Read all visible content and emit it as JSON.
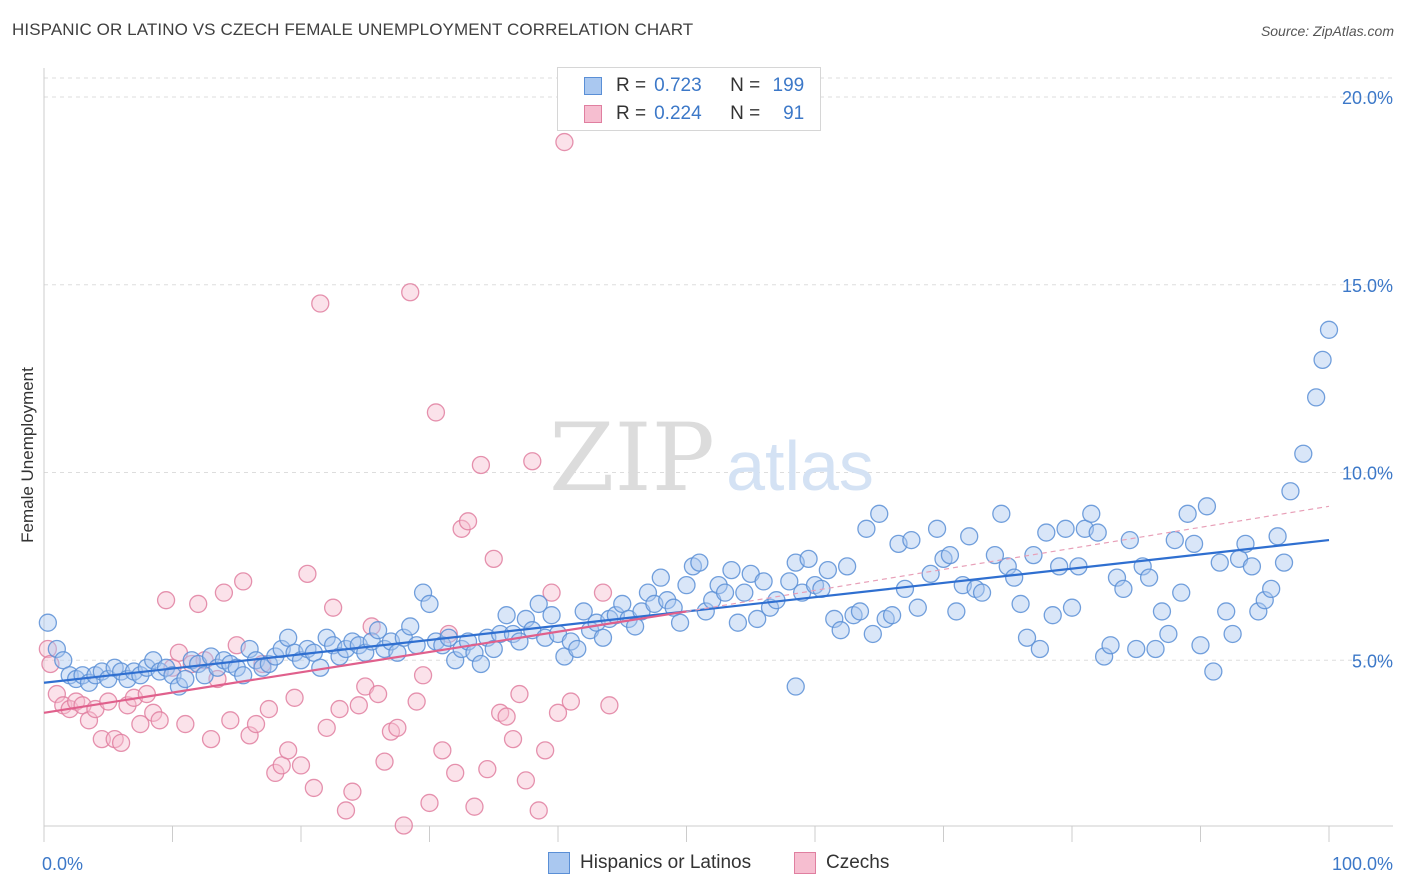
{
  "title": "HISPANIC OR LATINO VS CZECH FEMALE UNEMPLOYMENT CORRELATION CHART",
  "source": "Source: ZipAtlas.com",
  "watermark": {
    "zip": "ZIP",
    "atlas": "atlas"
  },
  "legend": {
    "r_label": "R =",
    "n_label": "N =",
    "rows": [
      {
        "name": "Hispanics or Latinos",
        "r": "0.723",
        "n": "199",
        "color": "#5a8fd6",
        "fill": "#aac8f0"
      },
      {
        "name": "Czechs",
        "r": "0.224",
        "n": "91",
        "color": "#e07fa0",
        "fill": "#f6bed0"
      }
    ]
  },
  "chart_data": {
    "type": "scatter",
    "title": "HISPANIC OR LATINO VS CZECH FEMALE UNEMPLOYMENT CORRELATION CHART",
    "xlabel": "",
    "ylabel": "Female Unemployment",
    "xlim": [
      0,
      100
    ],
    "ylim": [
      0,
      20.5
    ],
    "x_tick_labels": [
      "0.0%",
      "100.0%"
    ],
    "y_ticks": [
      5,
      10,
      15,
      20
    ],
    "y_tick_labels": [
      "5.0%",
      "10.0%",
      "15.0%",
      "20.0%"
    ],
    "grid": true,
    "series": [
      {
        "name": "Hispanics or Latinos",
        "color": "#5a8fd6",
        "trend": {
          "x0": 0,
          "y0": 4.4,
          "x1": 100,
          "y1": 8.2,
          "style": "solid"
        },
        "points": [
          [
            0.3,
            6.0
          ],
          [
            1,
            5.3
          ],
          [
            1.5,
            5.0
          ],
          [
            2,
            4.6
          ],
          [
            2.5,
            4.5
          ],
          [
            3,
            4.6
          ],
          [
            3.5,
            4.4
          ],
          [
            4,
            4.6
          ],
          [
            4.5,
            4.7
          ],
          [
            5,
            4.5
          ],
          [
            5.5,
            4.8
          ],
          [
            6,
            4.7
          ],
          [
            6.5,
            4.5
          ],
          [
            7,
            4.7
          ],
          [
            7.5,
            4.6
          ],
          [
            8,
            4.8
          ],
          [
            8.5,
            5.0
          ],
          [
            9,
            4.7
          ],
          [
            9.5,
            4.8
          ],
          [
            10,
            4.6
          ],
          [
            10.5,
            4.3
          ],
          [
            11,
            4.5
          ],
          [
            11.5,
            5.0
          ],
          [
            12,
            4.9
          ],
          [
            12.5,
            4.6
          ],
          [
            13,
            5.1
          ],
          [
            13.5,
            4.8
          ],
          [
            14,
            5.0
          ],
          [
            14.5,
            4.9
          ],
          [
            15,
            4.8
          ],
          [
            15.5,
            4.6
          ],
          [
            16,
            5.3
          ],
          [
            16.5,
            5.0
          ],
          [
            17,
            4.8
          ],
          [
            17.5,
            4.9
          ],
          [
            18,
            5.1
          ],
          [
            18.5,
            5.3
          ],
          [
            19,
            5.6
          ],
          [
            19.5,
            5.2
          ],
          [
            20,
            5.0
          ],
          [
            20.5,
            5.3
          ],
          [
            21,
            5.2
          ],
          [
            21.5,
            4.8
          ],
          [
            22,
            5.6
          ],
          [
            22.5,
            5.4
          ],
          [
            23,
            5.1
          ],
          [
            23.5,
            5.3
          ],
          [
            24,
            5.5
          ],
          [
            24.5,
            5.4
          ],
          [
            25,
            5.2
          ],
          [
            25.5,
            5.5
          ],
          [
            26,
            5.8
          ],
          [
            26.5,
            5.3
          ],
          [
            27,
            5.5
          ],
          [
            27.5,
            5.2
          ],
          [
            28,
            5.6
          ],
          [
            28.5,
            5.9
          ],
          [
            29,
            5.4
          ],
          [
            29.5,
            6.8
          ],
          [
            30,
            6.5
          ],
          [
            30.5,
            5.5
          ],
          [
            31,
            5.4
          ],
          [
            31.5,
            5.6
          ],
          [
            32,
            5.0
          ],
          [
            32.5,
            5.3
          ],
          [
            33,
            5.5
          ],
          [
            33.5,
            5.2
          ],
          [
            34,
            4.9
          ],
          [
            34.5,
            5.6
          ],
          [
            35,
            5.3
          ],
          [
            35.5,
            5.7
          ],
          [
            36,
            6.2
          ],
          [
            36.5,
            5.7
          ],
          [
            37,
            5.5
          ],
          [
            37.5,
            6.1
          ],
          [
            38,
            5.8
          ],
          [
            38.5,
            6.5
          ],
          [
            39,
            5.6
          ],
          [
            39.5,
            6.2
          ],
          [
            40,
            5.7
          ],
          [
            40.5,
            5.1
          ],
          [
            41,
            5.5
          ],
          [
            41.5,
            5.3
          ],
          [
            42,
            6.3
          ],
          [
            42.5,
            5.8
          ],
          [
            43,
            6.0
          ],
          [
            43.5,
            5.6
          ],
          [
            44,
            6.1
          ],
          [
            44.5,
            6.2
          ],
          [
            45,
            6.5
          ],
          [
            45.5,
            6.1
          ],
          [
            46,
            5.9
          ],
          [
            46.5,
            6.3
          ],
          [
            47,
            6.8
          ],
          [
            47.5,
            6.5
          ],
          [
            48,
            7.2
          ],
          [
            48.5,
            6.6
          ],
          [
            49,
            6.4
          ],
          [
            49.5,
            6.0
          ],
          [
            50,
            7.0
          ],
          [
            50.5,
            7.5
          ],
          [
            51,
            7.6
          ],
          [
            51.5,
            6.3
          ],
          [
            52,
            6.6
          ],
          [
            52.5,
            7.0
          ],
          [
            53,
            6.8
          ],
          [
            53.5,
            7.4
          ],
          [
            54,
            6.0
          ],
          [
            54.5,
            6.8
          ],
          [
            55,
            7.3
          ],
          [
            55.5,
            6.1
          ],
          [
            56,
            7.1
          ],
          [
            56.5,
            6.4
          ],
          [
            57,
            6.6
          ],
          [
            58,
            7.1
          ],
          [
            58.5,
            7.6
          ],
          [
            59,
            6.8
          ],
          [
            59.5,
            7.7
          ],
          [
            60,
            7.0
          ],
          [
            60.5,
            6.9
          ],
          [
            61,
            7.4
          ],
          [
            61.5,
            6.1
          ],
          [
            62,
            5.8
          ],
          [
            62.5,
            7.5
          ],
          [
            63,
            6.2
          ],
          [
            63.5,
            6.3
          ],
          [
            64,
            8.5
          ],
          [
            64.5,
            5.7
          ],
          [
            65,
            8.9
          ],
          [
            65.5,
            6.1
          ],
          [
            66,
            6.2
          ],
          [
            66.5,
            8.1
          ],
          [
            67,
            6.9
          ],
          [
            67.5,
            8.2
          ],
          [
            68,
            6.4
          ],
          [
            69,
            7.3
          ],
          [
            69.5,
            8.5
          ],
          [
            70,
            7.7
          ],
          [
            70.5,
            7.8
          ],
          [
            71,
            6.3
          ],
          [
            71.5,
            7.0
          ],
          [
            72,
            8.3
          ],
          [
            72.5,
            6.9
          ],
          [
            73,
            6.8
          ],
          [
            74,
            7.8
          ],
          [
            74.5,
            8.9
          ],
          [
            75,
            7.5
          ],
          [
            75.5,
            7.2
          ],
          [
            76,
            6.5
          ],
          [
            76.5,
            5.6
          ],
          [
            77,
            7.8
          ],
          [
            77.5,
            5.3
          ],
          [
            78,
            8.4
          ],
          [
            78.5,
            6.2
          ],
          [
            79,
            7.5
          ],
          [
            79.5,
            8.5
          ],
          [
            80,
            6.4
          ],
          [
            80.5,
            7.5
          ],
          [
            81,
            8.5
          ],
          [
            81.5,
            8.9
          ],
          [
            82,
            8.4
          ],
          [
            82.5,
            5.1
          ],
          [
            83,
            5.4
          ],
          [
            83.5,
            7.2
          ],
          [
            84,
            6.9
          ],
          [
            84.5,
            8.2
          ],
          [
            85,
            5.3
          ],
          [
            85.5,
            7.5
          ],
          [
            86,
            7.2
          ],
          [
            86.5,
            5.3
          ],
          [
            87,
            6.3
          ],
          [
            87.5,
            5.7
          ],
          [
            88,
            8.2
          ],
          [
            88.5,
            6.8
          ],
          [
            89,
            8.9
          ],
          [
            89.5,
            8.1
          ],
          [
            90,
            5.4
          ],
          [
            90.5,
            9.1
          ],
          [
            91,
            4.7
          ],
          [
            91.5,
            7.6
          ],
          [
            92,
            6.3
          ],
          [
            92.5,
            5.7
          ],
          [
            93,
            7.7
          ],
          [
            93.5,
            8.1
          ],
          [
            94,
            7.5
          ],
          [
            94.5,
            6.3
          ],
          [
            95,
            6.6
          ],
          [
            95.5,
            6.9
          ],
          [
            96,
            8.3
          ],
          [
            96.5,
            7.6
          ],
          [
            97,
            9.5
          ],
          [
            98,
            10.5
          ],
          [
            99,
            12.0
          ],
          [
            99.5,
            13.0
          ],
          [
            100,
            13.8
          ],
          [
            58.5,
            4.3
          ]
        ]
      },
      {
        "name": "Czechs",
        "color": "#e07fa0",
        "trend": {
          "x0": 0,
          "y0": 3.6,
          "x1": 50,
          "y1": 6.3,
          "style": "solid"
        },
        "trend_extension": {
          "x0": 50,
          "y0": 6.3,
          "x1": 100,
          "y1": 9.1,
          "style": "dashed"
        },
        "points": [
          [
            0.3,
            5.3
          ],
          [
            0.5,
            4.9
          ],
          [
            1,
            4.1
          ],
          [
            1.5,
            3.8
          ],
          [
            2,
            3.7
          ],
          [
            2.5,
            3.9
          ],
          [
            3,
            3.8
          ],
          [
            3.5,
            3.4
          ],
          [
            4,
            3.7
          ],
          [
            4.5,
            2.9
          ],
          [
            5,
            3.9
          ],
          [
            5.5,
            2.9
          ],
          [
            6,
            2.8
          ],
          [
            6.5,
            3.8
          ],
          [
            7,
            4.0
          ],
          [
            7.5,
            3.3
          ],
          [
            8,
            4.1
          ],
          [
            8.5,
            3.6
          ],
          [
            9,
            3.4
          ],
          [
            9.5,
            6.6
          ],
          [
            10,
            4.8
          ],
          [
            10.5,
            5.2
          ],
          [
            11,
            3.3
          ],
          [
            11.5,
            4.9
          ],
          [
            12,
            6.5
          ],
          [
            12.5,
            5.0
          ],
          [
            13,
            2.9
          ],
          [
            13.5,
            4.5
          ],
          [
            14,
            6.8
          ],
          [
            14.5,
            3.4
          ],
          [
            15,
            5.4
          ],
          [
            15.5,
            7.1
          ],
          [
            16,
            3.0
          ],
          [
            16.5,
            3.3
          ],
          [
            17,
            4.9
          ],
          [
            17.5,
            3.7
          ],
          [
            18,
            2.0
          ],
          [
            18.5,
            2.2
          ],
          [
            19,
            2.6
          ],
          [
            19.5,
            4.0
          ],
          [
            20,
            2.2
          ],
          [
            20.5,
            7.3
          ],
          [
            21,
            1.6
          ],
          [
            21.5,
            14.5
          ],
          [
            22,
            3.2
          ],
          [
            22.5,
            6.4
          ],
          [
            23,
            3.7
          ],
          [
            23.5,
            1.0
          ],
          [
            24,
            1.5
          ],
          [
            24.5,
            3.8
          ],
          [
            25,
            4.3
          ],
          [
            25.5,
            5.9
          ],
          [
            26,
            4.1
          ],
          [
            26.5,
            2.3
          ],
          [
            27,
            3.1
          ],
          [
            27.5,
            3.2
          ],
          [
            28,
            0.6
          ],
          [
            28.5,
            14.8
          ],
          [
            29,
            3.9
          ],
          [
            29.5,
            4.6
          ],
          [
            30,
            1.2
          ],
          [
            30.5,
            11.6
          ],
          [
            31,
            2.6
          ],
          [
            31.5,
            5.7
          ],
          [
            32,
            2.0
          ],
          [
            32.5,
            8.5
          ],
          [
            33,
            8.7
          ],
          [
            33.5,
            1.1
          ],
          [
            34,
            10.2
          ],
          [
            34.5,
            2.1
          ],
          [
            35,
            7.7
          ],
          [
            35.5,
            3.6
          ],
          [
            36,
            3.5
          ],
          [
            36.5,
            2.9
          ],
          [
            37,
            4.1
          ],
          [
            37.5,
            1.8
          ],
          [
            38,
            10.3
          ],
          [
            38.5,
            1.0
          ],
          [
            39,
            2.6
          ],
          [
            39.5,
            6.8
          ],
          [
            40,
            3.6
          ],
          [
            40.5,
            18.8
          ],
          [
            41,
            3.9
          ],
          [
            43.5,
            6.8
          ],
          [
            44,
            3.8
          ]
        ]
      }
    ]
  }
}
